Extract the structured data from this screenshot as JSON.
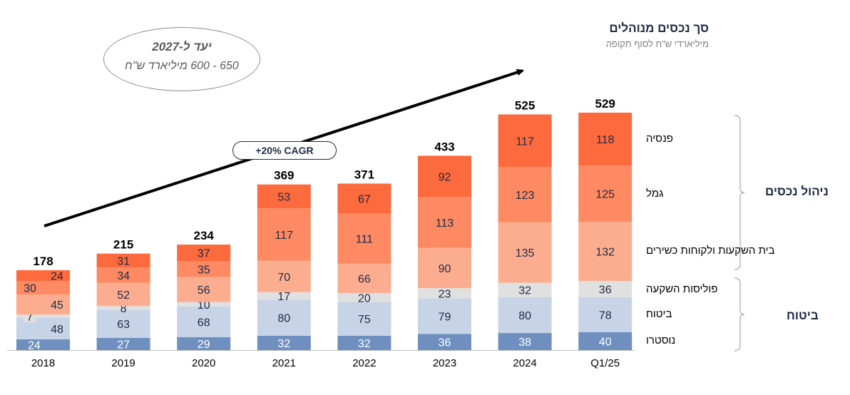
{
  "title": "סך נכסים מנוהלים",
  "subtitle": "מיליארדי ש\"ח לסוף תקופה",
  "target": {
    "line1": "יעד ל-2027",
    "line2": "650 - 600 מיליארד ש\"ח"
  },
  "cagr_label": "+20% CAGR",
  "colors": {
    "nostro": "#6f8fbf",
    "insurance": "#c7d3e6",
    "policies": "#e0e0e0",
    "investment_house": "#fdad8f",
    "gemel": "#fd8a62",
    "pension": "#fd6a3d"
  },
  "chart_data": {
    "type": "bar",
    "stacked": true,
    "categories": [
      "2018",
      "2019",
      "2020",
      "2021",
      "2022",
      "2023",
      "2024",
      "Q1/25"
    ],
    "series": [
      {
        "key": "nostro",
        "name": "נוסטרו",
        "values": [
          24,
          27,
          29,
          32,
          32,
          36,
          38,
          40
        ]
      },
      {
        "key": "insurance",
        "name": "ביטוח",
        "values": [
          48,
          63,
          68,
          80,
          75,
          79,
          80,
          78
        ]
      },
      {
        "key": "policies",
        "name": "פוליסות השקעה",
        "values": [
          7,
          8,
          10,
          17,
          20,
          23,
          32,
          36
        ]
      },
      {
        "key": "investment_house",
        "name": "בית השקעות ולקוחות כשירים",
        "values": [
          45,
          52,
          56,
          70,
          66,
          90,
          135,
          132
        ]
      },
      {
        "key": "gemel",
        "name": "גמל",
        "values": [
          30,
          34,
          35,
          117,
          111,
          113,
          123,
          125
        ]
      },
      {
        "key": "pension",
        "name": "פנסיה",
        "values": [
          24,
          31,
          37,
          53,
          67,
          92,
          117,
          118
        ]
      }
    ],
    "totals": [
      178,
      215,
      234,
      369,
      371,
      433,
      525,
      529
    ],
    "groups": [
      {
        "name": "ניהול נכסים",
        "series": [
          "investment_house",
          "gemel",
          "pension"
        ]
      },
      {
        "name": "ביטוח",
        "series": [
          "nostro",
          "insurance",
          "policies"
        ]
      }
    ],
    "legend_placement": "right",
    "grid": false
  }
}
